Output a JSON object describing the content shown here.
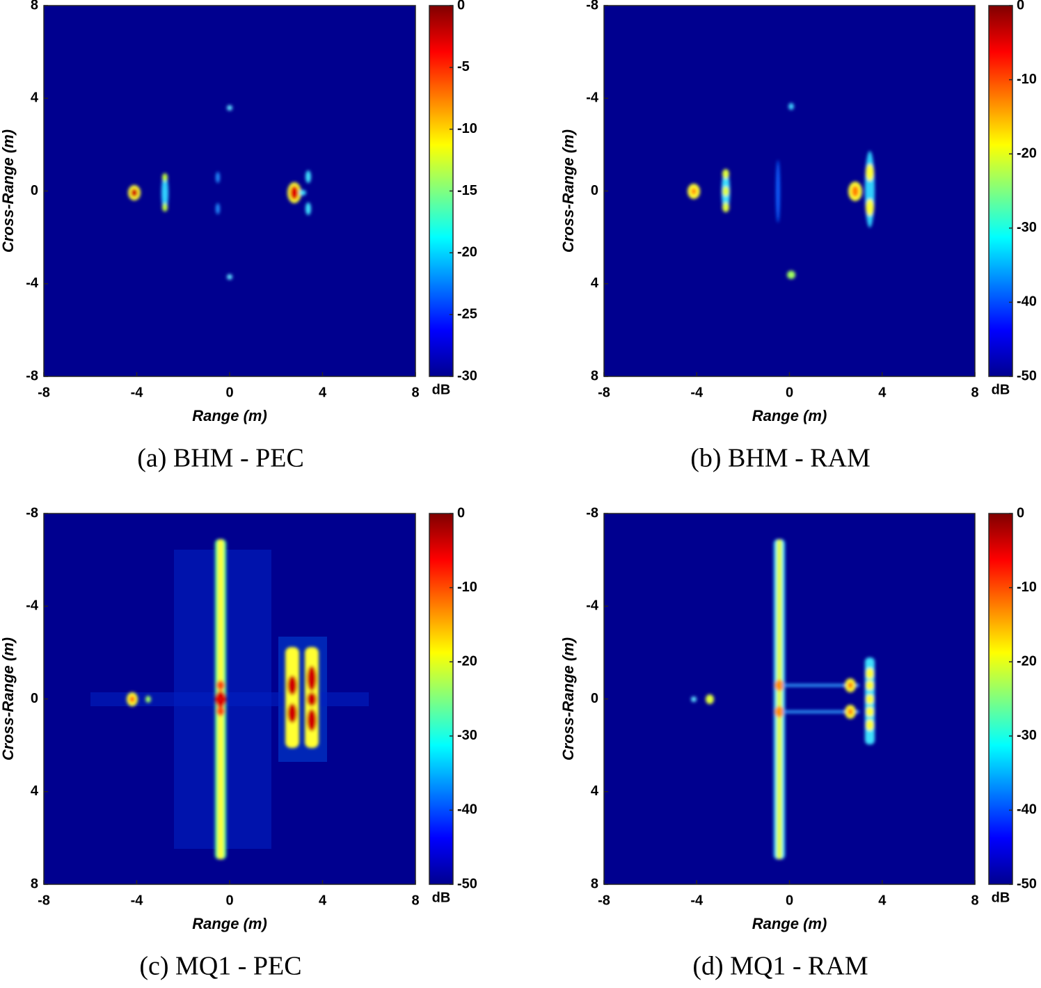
{
  "chart_data": [
    {
      "type": "heatmap",
      "caption": "(a) BHM - PEC",
      "xlabel": "Range (m)",
      "ylabel": "Cross-Range (m)",
      "xlim": [
        -8,
        8
      ],
      "xticks": [
        -8,
        -4,
        0,
        4,
        8
      ],
      "ylim": [
        -8,
        8
      ],
      "yticks": [
        -8,
        -4,
        0,
        4,
        8
      ],
      "colormap": "jet",
      "colorbar": {
        "label": "dB",
        "lim": [
          -30,
          0
        ],
        "ticks": [
          -30,
          -25,
          -20,
          -15,
          -10,
          -5,
          0
        ]
      }
    },
    {
      "type": "heatmap",
      "caption": "(b) BHM - RAM",
      "xlabel": "Range (m)",
      "ylabel": "Cross-Range (m)",
      "xlim": [
        -8,
        8
      ],
      "xticks": [
        -8,
        -4,
        0,
        4,
        8
      ],
      "ylim": [
        8,
        -8
      ],
      "yticks": [
        -8,
        -4,
        0,
        4,
        8
      ],
      "colormap": "jet",
      "colorbar": {
        "label": "dB",
        "lim": [
          -50,
          0
        ],
        "ticks": [
          -50,
          -40,
          -30,
          -20,
          -10,
          0
        ]
      }
    },
    {
      "type": "heatmap",
      "caption": "(c) MQ1 - PEC",
      "xlabel": "Range (m)",
      "ylabel": "Cross-Range (m)",
      "xlim": [
        -8,
        8
      ],
      "xticks": [
        -8,
        -4,
        0,
        4,
        8
      ],
      "ylim": [
        8,
        -8
      ],
      "yticks": [
        -8,
        -4,
        0,
        4,
        8
      ],
      "colormap": "jet",
      "colorbar": {
        "label": "dB",
        "lim": [
          -50,
          0
        ],
        "ticks": [
          -50,
          -40,
          -30,
          -20,
          -10,
          0
        ]
      }
    },
    {
      "type": "heatmap",
      "caption": "(d) MQ1 - RAM",
      "xlabel": "Range (m)",
      "ylabel": "Cross-Range (m)",
      "xlim": [
        -8,
        8
      ],
      "xticks": [
        -8,
        -4,
        0,
        4,
        8
      ],
      "ylim": [
        8,
        -8
      ],
      "yticks": [
        -8,
        -4,
        0,
        4,
        8
      ],
      "colormap": "jet",
      "colorbar": {
        "label": "dB",
        "lim": [
          -50,
          0
        ],
        "ticks": [
          -50,
          -40,
          -30,
          -20,
          -10,
          0
        ]
      }
    }
  ]
}
